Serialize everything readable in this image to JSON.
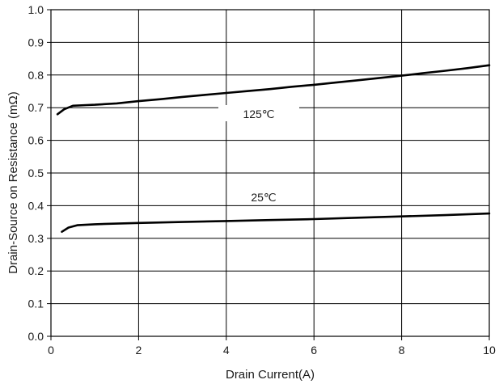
{
  "chart_data": {
    "type": "line",
    "xlabel": "Drain Current(A)",
    "ylabel": "Drain-Source on Resistance (mΩ)",
    "xlim": [
      0,
      10
    ],
    "ylim": [
      0,
      1.0
    ],
    "x_ticks": [
      0,
      2,
      4,
      6,
      8,
      10
    ],
    "y_ticks": [
      0.0,
      0.1,
      0.2,
      0.3,
      0.4,
      0.5,
      0.6,
      0.7,
      0.8,
      0.9,
      1.0
    ],
    "x_tick_labels": [
      "0",
      "2",
      "4",
      "6",
      "8",
      "10"
    ],
    "y_tick_labels": [
      "0.0",
      "0.1",
      "0.2",
      "0.3",
      "0.4",
      "0.5",
      "0.6",
      "0.7",
      "0.8",
      "0.9",
      "1.0"
    ],
    "grid": true,
    "series": [
      {
        "name": "125℃",
        "x": [
          0.15,
          0.3,
          0.5,
          0.8,
          1.0,
          1.5,
          2.0,
          2.5,
          3.0,
          3.5,
          4.0,
          4.5,
          5.0,
          5.5,
          6.0,
          6.5,
          7.0,
          7.5,
          8.0,
          8.5,
          9.0,
          9.5,
          10.0
        ],
        "y": [
          0.68,
          0.695,
          0.706,
          0.708,
          0.709,
          0.713,
          0.72,
          0.726,
          0.733,
          0.739,
          0.745,
          0.751,
          0.757,
          0.764,
          0.77,
          0.777,
          0.784,
          0.791,
          0.798,
          0.806,
          0.813,
          0.821,
          0.83
        ]
      },
      {
        "name": "25℃",
        "x": [
          0.25,
          0.4,
          0.6,
          1.0,
          1.5,
          2.0,
          3.0,
          4.0,
          5.0,
          6.0,
          7.0,
          8.0,
          9.0,
          10.0
        ],
        "y": [
          0.32,
          0.333,
          0.34,
          0.343,
          0.345,
          0.347,
          0.35,
          0.353,
          0.356,
          0.359,
          0.363,
          0.367,
          0.371,
          0.376
        ]
      }
    ],
    "annotations": [
      {
        "text": "125℃",
        "series": 0
      },
      {
        "text": "25℃",
        "series": 1
      }
    ],
    "colors": {
      "line": "#000000",
      "grid": "#000000",
      "background": "#ffffff"
    }
  }
}
